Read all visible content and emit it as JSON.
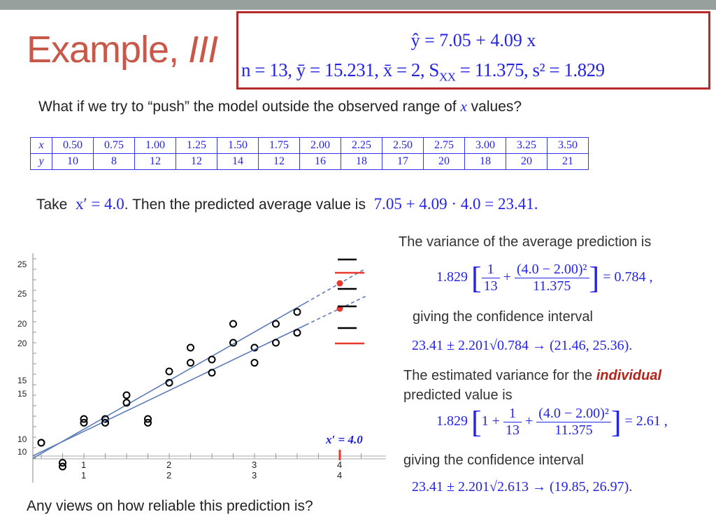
{
  "slide": {
    "title_main": "Example, ",
    "title_suffix": "III",
    "model_box": {
      "equation": "ŷ = 7.05 + 4.09 x",
      "stats": "n = 13,  ȳ = 15.231,  x̄ = 2, S",
      "stats_sub": "XX",
      "stats_rest": " = 11.375,  s² = 1.829"
    },
    "question": "What if we try to “push” the model outside the observed range of",
    "question_var": "x",
    "question_end": "values?",
    "table": {
      "x_label": "x",
      "y_label": "y",
      "x": [
        "0.50",
        "0.75",
        "1.00",
        "1.25",
        "1.50",
        "1.75",
        "2.00",
        "2.25",
        "2.50",
        "2.75",
        "3.00",
        "3.25",
        "3.50"
      ],
      "y": [
        "10",
        "8",
        "12",
        "12",
        "14",
        "12",
        "16",
        "18",
        "17",
        "20",
        "18",
        "20",
        "21"
      ]
    },
    "take_prefix": "Take",
    "take_math": "x′ = 4.0",
    "take_mid": ". Then the predicted average value is",
    "take_result": "7.05 + 4.09 · 4.0 = 23.41.",
    "right": {
      "var_avg_text": "The variance of the average prediction is",
      "var_avg": {
        "coef": "1.829",
        "one": "",
        "f1n": "1",
        "f1d": "13",
        "f2n": "(4.0 − 2.00)²",
        "f2d": "11.375",
        "result": "= 0.784 ,"
      },
      "ci_text_1": "giving the confidence interval",
      "ci_1": "23.41 ± 2.201√0.784 → (21.46, 25.36).",
      "var_ind_text": "The estimated variance for the",
      "var_ind_em": "individual",
      "var_ind_text2": "predicted value is",
      "var_ind": {
        "coef": "1.829",
        "one": "1 +",
        "f1n": "1",
        "f1d": "13",
        "f2n": "(4.0 − 2.00)²",
        "f2d": "11.375",
        "result": "= 2.61 ,"
      },
      "ci_text_2": "giving the confidence interval",
      "ci_2": "23.41 ± 2.201√2.613 → (19.85, 26.97)."
    },
    "plot": {
      "y_ticks": [
        "25",
        "25",
        "20",
        "20",
        "15",
        "15",
        "10",
        "10"
      ],
      "x_ticks": [
        "1",
        "1",
        "2",
        "2",
        "3",
        "3",
        "4",
        "4"
      ],
      "annotation": "x′ = 4.0",
      "fit": {
        "intercept": 7.05,
        "slope": 4.09
      },
      "prediction": {
        "x": 4.0,
        "y": 23.41
      },
      "colors": {
        "line": "#5b7bb8",
        "prediction": "#e8392f",
        "points": "#000000"
      }
    },
    "closing": "Any views on how reliable this prediction is?"
  }
}
